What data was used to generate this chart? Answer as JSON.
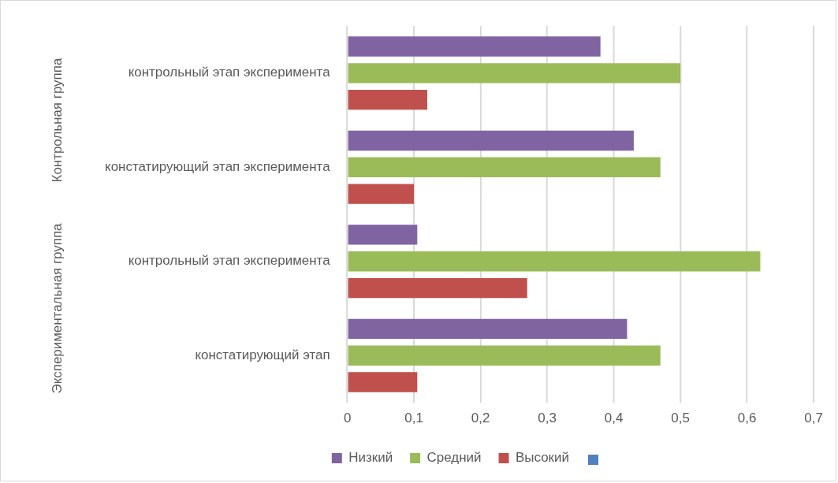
{
  "chart_data": {
    "type": "bar",
    "orientation": "horizontal",
    "categories": [
      "контрольный этап эксперимента",
      "констатирующий этап эксперимента",
      "контрольный этап эксперимента",
      "констатирующий этап"
    ],
    "series": [
      {
        "name": "Низкий",
        "color": "#8064a2",
        "values": [
          0.38,
          0.43,
          0.105,
          0.42
        ]
      },
      {
        "name": "Средний",
        "color": "#9bbb59",
        "values": [
          0.5,
          0.47,
          0.62,
          0.47
        ]
      },
      {
        "name": "Высокий",
        "color": "#c0504d",
        "values": [
          0.12,
          0.1,
          0.27,
          0.105
        ]
      }
    ],
    "xlim": [
      0,
      0.7
    ],
    "xticks": [
      0,
      {
        "value": 0.1,
        "label": "0,1"
      },
      {
        "value": 0.2,
        "label": "0,2"
      },
      {
        "value": 0.3,
        "label": "0,3"
      },
      {
        "value": 0.4,
        "label": "0,4"
      },
      {
        "value": 0.5,
        "label": "0,5"
      },
      {
        "value": 0.6,
        "label": "0,6"
      },
      {
        "value": 0.7,
        "label": "0,7"
      }
    ],
    "annotations": [
      "Контрольная группа",
      "Экспериментальная группа"
    ],
    "grid": "x",
    "legend": "bottom"
  }
}
